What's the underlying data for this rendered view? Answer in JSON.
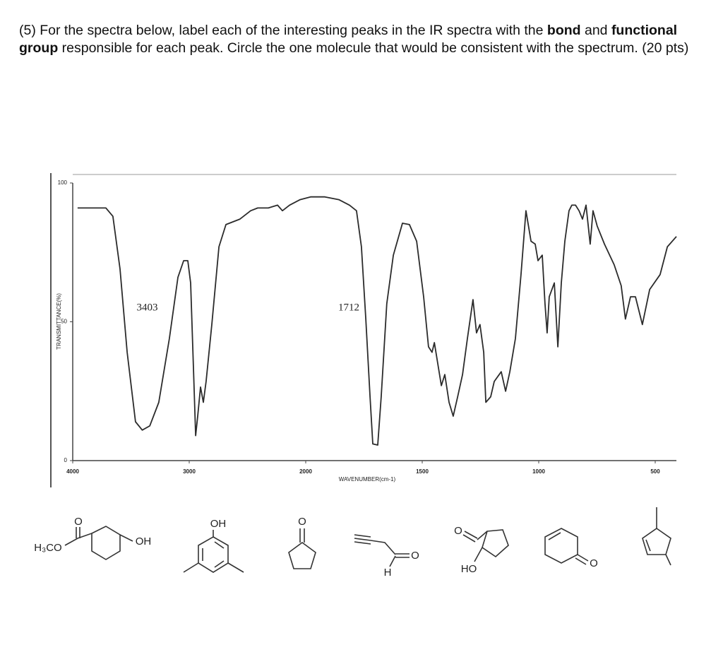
{
  "question": [
    "(5) For the spectra below, label each of the interesting peaks in the IR spectra with the ",
    "bond",
    " and ",
    "functional group",
    " responsible for each peak. Circle the one molecule that would be consistent with the spectrum. (20 pts)"
  ],
  "chart_data": {
    "type": "line",
    "xlabel": "WAVENUMBER(cm-1)",
    "ylabel": "TRANSMITTANCE(%)",
    "x": [
      3958,
      3715,
      3655,
      3594,
      3533,
      3461,
      3403,
      3339,
      3261,
      3170,
      3097,
      3048,
      3012,
      2988,
      2964,
      2945,
      2927,
      2903,
      2879,
      2855,
      2806,
      2745,
      2685,
      2564,
      2473,
      2412,
      2321,
      2242,
      2200,
      2139,
      2048,
      1979,
      1918,
      1858,
      1812,
      1782,
      1761,
      1742,
      1724,
      1712,
      1691,
      1676,
      1652,
      1624,
      1585,
      1555,
      1524,
      1494,
      1473,
      1458,
      1448,
      1418,
      1403,
      1385,
      1367,
      1348,
      1327,
      1306,
      1282,
      1267,
      1252,
      1236,
      1227,
      1206,
      1191,
      1161,
      1142,
      1124,
      1100,
      1076,
      1055,
      1033,
      1015,
      1003,
      985,
      973,
      964,
      955,
      933,
      918,
      903,
      888,
      870,
      858,
      842,
      827,
      812,
      797,
      779,
      767,
      749,
      718,
      676,
      646,
      628,
      606,
      585,
      555,
      524,
      479,
      448,
      409
    ],
    "values": [
      91,
      91,
      88,
      69,
      39,
      14,
      11,
      12.5,
      21,
      44,
      66,
      72,
      72,
      64,
      34,
      9,
      16,
      26.5,
      21,
      28.5,
      49,
      77,
      85,
      87,
      90,
      91,
      91,
      92,
      90,
      92,
      94,
      95,
      95,
      94,
      92,
      90,
      77,
      51,
      23,
      6,
      5.6,
      23,
      56.5,
      74,
      85.5,
      85,
      79,
      59,
      41,
      39,
      42.5,
      27,
      31,
      21,
      16,
      23,
      31,
      44,
      58,
      46,
      49,
      39,
      21,
      23,
      28.5,
      32,
      25,
      32,
      44,
      67,
      90,
      79,
      78,
      72,
      74,
      56.5,
      46,
      59,
      64,
      41,
      64,
      79,
      90,
      92,
      92,
      90,
      87,
      92,
      78,
      90,
      84.5,
      78,
      70.5,
      63,
      51,
      59,
      59,
      49,
      61.6,
      67,
      77,
      80.7
    ],
    "color": "#2b2b2b",
    "xlim": [
      4000,
      409
    ],
    "ylim": [
      0,
      100
    ],
    "xticks": [
      4000,
      3000,
      2000,
      1500,
      1000,
      500
    ],
    "yticks": [
      0,
      50,
      100
    ],
    "peak_labels": [
      3403,
      1712
    ]
  },
  "molecules": [
    [
      "O",
      "H₃CO",
      "OH"
    ],
    [
      "OH"
    ],
    [
      "O"
    ],
    [
      "O",
      "H"
    ],
    [
      "O",
      "HO"
    ],
    [
      "O"
    ]
  ]
}
